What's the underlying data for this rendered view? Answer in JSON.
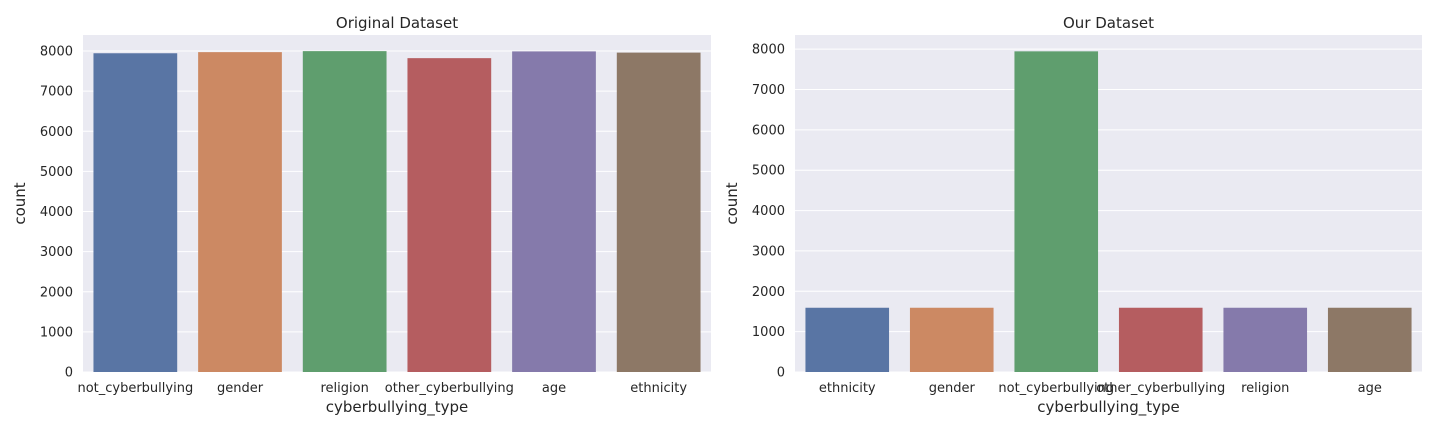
{
  "chart_data": [
    {
      "type": "bar",
      "title": "Original Dataset",
      "xlabel": "cyberbullying_type",
      "ylabel": "count",
      "categories": [
        "not_cyberbullying",
        "gender",
        "religion",
        "other_cyberbullying",
        "age",
        "ethnicity"
      ],
      "values": [
        7945,
        7973,
        7998,
        7823,
        7992,
        7961
      ],
      "colors": [
        "#5975a4",
        "#cc8963",
        "#5f9e6e",
        "#b55d60",
        "#857aab",
        "#8d7866"
      ],
      "ylim": [
        0,
        8400
      ],
      "yticks": [
        0,
        1000,
        2000,
        3000,
        4000,
        5000,
        6000,
        7000,
        8000
      ],
      "grid": true
    },
    {
      "type": "bar",
      "title": "Our Dataset",
      "xlabel": "cyberbullying_type",
      "ylabel": "count",
      "categories": [
        "ethnicity",
        "gender",
        "not_cyberbullying",
        "other_cyberbullying",
        "religion",
        "age"
      ],
      "values": [
        1592,
        1592,
        7945,
        1592,
        1592,
        1592
      ],
      "colors": [
        "#5975a4",
        "#cc8963",
        "#5f9e6e",
        "#b55d60",
        "#857aab",
        "#8d7866"
      ],
      "ylim": [
        0,
        8350
      ],
      "yticks": [
        0,
        1000,
        2000,
        3000,
        4000,
        5000,
        6000,
        7000,
        8000
      ],
      "grid": true
    }
  ]
}
